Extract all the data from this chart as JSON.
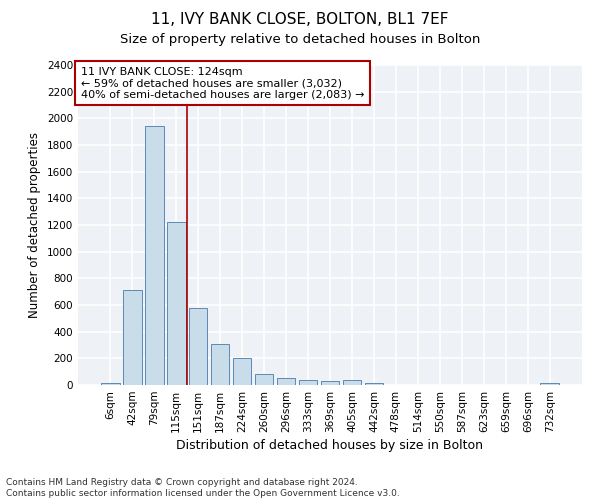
{
  "title1": "11, IVY BANK CLOSE, BOLTON, BL1 7EF",
  "title2": "Size of property relative to detached houses in Bolton",
  "xlabel": "Distribution of detached houses by size in Bolton",
  "ylabel": "Number of detached properties",
  "categories": [
    "6sqm",
    "42sqm",
    "79sqm",
    "115sqm",
    "151sqm",
    "187sqm",
    "224sqm",
    "260sqm",
    "296sqm",
    "333sqm",
    "369sqm",
    "405sqm",
    "442sqm",
    "478sqm",
    "514sqm",
    "550sqm",
    "587sqm",
    "623sqm",
    "659sqm",
    "696sqm",
    "732sqm"
  ],
  "values": [
    15,
    710,
    1940,
    1220,
    575,
    305,
    200,
    85,
    50,
    35,
    30,
    35,
    15,
    0,
    0,
    0,
    0,
    0,
    0,
    0,
    15
  ],
  "bar_color": "#c9dcea",
  "bar_edge_color": "#5a8ab5",
  "vline_x_idx": 3,
  "vline_color": "#aa0000",
  "annotation_line1": "11 IVY BANK CLOSE: 124sqm",
  "annotation_line2": "← 59% of detached houses are smaller (3,032)",
  "annotation_line3": "40% of semi-detached houses are larger (2,083) →",
  "annotation_box_color": "white",
  "annotation_box_edge_color": "#aa0000",
  "ylim": [
    0,
    2400
  ],
  "yticks": [
    0,
    200,
    400,
    600,
    800,
    1000,
    1200,
    1400,
    1600,
    1800,
    2000,
    2200,
    2400
  ],
  "bg_color": "#eef2f7",
  "grid_color": "white",
  "footer": "Contains HM Land Registry data © Crown copyright and database right 2024.\nContains public sector information licensed under the Open Government Licence v3.0.",
  "title1_fontsize": 11,
  "title2_fontsize": 9.5,
  "xlabel_fontsize": 9,
  "ylabel_fontsize": 8.5,
  "tick_fontsize": 7.5,
  "annotation_fontsize": 8,
  "footer_fontsize": 6.5
}
